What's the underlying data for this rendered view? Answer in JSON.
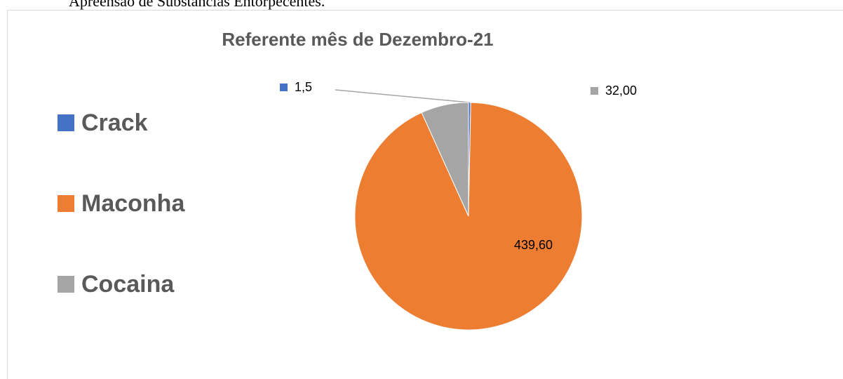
{
  "heading": "Apreensão de Substâncias Entorpecentes.",
  "chart_data": {
    "type": "pie",
    "title": "Referente mês de Dezembro-21",
    "categories": [
      "Crack",
      "Maconha",
      "Cocaina"
    ],
    "values": [
      1.5,
      439.6,
      32
    ],
    "value_labels": [
      "1,5",
      "439,60",
      "32,00"
    ],
    "colors": [
      "#4472c4",
      "#ed7d31",
      "#a5a5a5"
    ],
    "legend": "left"
  }
}
